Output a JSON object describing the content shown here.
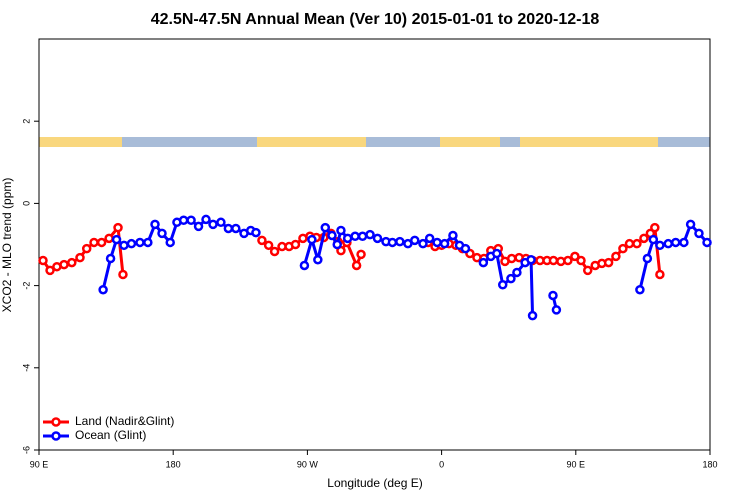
{
  "chart_data": {
    "type": "line",
    "title": "42.5N-47.5N Annual Mean (Ver 10)   2015-01-01 to 2020-12-18",
    "x_label": "Longitude (deg E)",
    "y_label": "XCO2 - MLO trend (ppm)",
    "xlim": [
      90,
      540
    ],
    "xticks": [
      {
        "value": 90,
        "label": "90 E"
      },
      {
        "value": 180,
        "label": "180"
      },
      {
        "value": 270,
        "label": "90 W"
      },
      {
        "value": 360,
        "label": "0"
      },
      {
        "value": 450,
        "label": "90 E"
      },
      {
        "value": 540,
        "label": "180"
      }
    ],
    "ylim": [
      -6,
      4
    ],
    "yticks": [
      -6,
      -4,
      -2,
      0,
      2
    ],
    "legend": "bottom-left",
    "series": [
      {
        "name": "Land (Nadir&Glint)",
        "color": "#ff0000",
        "x": [
          92.7,
          97.4,
          102,
          106.8,
          112,
          117.5,
          122,
          126.9,
          132,
          137,
          143,
          146.3,
          null,
          239.5,
          244,
          248,
          253,
          257.7,
          262,
          267,
          271.7,
          276,
          281,
          285.8,
          290.5,
          292.5,
          296.5,
          303,
          306,
          null,
          351,
          355.6,
          360,
          365,
          369.6,
          374,
          379,
          383.7,
          388.4,
          393,
          398,
          402.5,
          407,
          412,
          416.6,
          421,
          426,
          430.7,
          435,
          440,
          444.7,
          449.4,
          453.5,
          458,
          463,
          467.5,
          472,
          476.9,
          481.6,
          486,
          491,
          495.7,
          500,
          503,
          506.4
        ],
        "values": [
          -1.39,
          -1.63,
          -1.54,
          -1.49,
          -1.44,
          -1.32,
          -1.1,
          -0.95,
          -0.95,
          -0.85,
          -0.59,
          -1.73,
          null,
          -0.9,
          -1.02,
          -1.17,
          -1.05,
          -1.05,
          -1.0,
          -0.85,
          -0.8,
          -0.83,
          -0.83,
          -0.73,
          -0.93,
          -1.15,
          -0.95,
          -1.51,
          -1.24,
          null,
          -0.95,
          -1.05,
          -1.02,
          -0.98,
          -1.02,
          -1.1,
          -1.22,
          -1.32,
          -1.34,
          -1.15,
          -1.1,
          -1.41,
          -1.34,
          -1.32,
          -1.34,
          -1.39,
          -1.39,
          -1.39,
          -1.39,
          -1.41,
          -1.39,
          -1.29,
          -1.39,
          -1.63,
          -1.51,
          -1.46,
          -1.44,
          -1.29,
          -1.1,
          -0.98,
          -0.98,
          -0.85,
          -0.73,
          -0.59,
          -1.73
        ]
      },
      {
        "name": "Ocean (Glint)",
        "color": "#0000ff",
        "x": [
          133,
          138,
          142,
          147,
          152,
          157.7,
          163,
          167.8,
          172.5,
          178,
          182.5,
          187,
          192,
          197,
          202,
          206.7,
          212,
          217,
          222,
          227.5,
          232,
          235.5,
          null,
          268,
          273,
          277,
          282,
          286.5,
          290,
          292.5,
          297,
          302,
          307,
          312,
          317,
          322.7,
          327,
          332,
          337.4,
          342,
          347.5,
          352,
          357,
          362,
          367.6,
          372,
          376,
          null,
          388,
          393,
          397,
          401,
          406.5,
          410.5,
          416,
          420,
          421,
          null,
          434.7,
          437,
          null,
          493,
          498,
          502,
          506.4,
          512,
          517,
          522.5,
          527,
          532.6,
          538
        ],
        "values": [
          -2.1,
          -1.34,
          -0.88,
          -1.02,
          -0.98,
          -0.95,
          -0.95,
          -0.51,
          -0.73,
          -0.95,
          -0.46,
          -0.41,
          -0.41,
          -0.56,
          -0.39,
          -0.51,
          -0.46,
          -0.61,
          -0.61,
          -0.73,
          -0.66,
          -0.71,
          null,
          -1.51,
          -0.88,
          -1.37,
          -0.59,
          -0.78,
          -1.0,
          -0.66,
          -0.85,
          -0.8,
          -0.8,
          -0.76,
          -0.85,
          -0.93,
          -0.95,
          -0.93,
          -0.98,
          -0.9,
          -0.98,
          -0.85,
          -0.95,
          -0.98,
          -0.78,
          -1.02,
          -1.1,
          null,
          -1.44,
          -1.29,
          -1.22,
          -1.98,
          -1.83,
          -1.68,
          -1.44,
          -1.37,
          -2.73,
          null,
          -2.24,
          -2.59,
          null,
          -2.1,
          -1.34,
          -0.88,
          -1.02,
          -0.98,
          -0.95,
          -0.95,
          -0.51,
          -0.73,
          -0.95
        ]
      }
    ]
  }
}
